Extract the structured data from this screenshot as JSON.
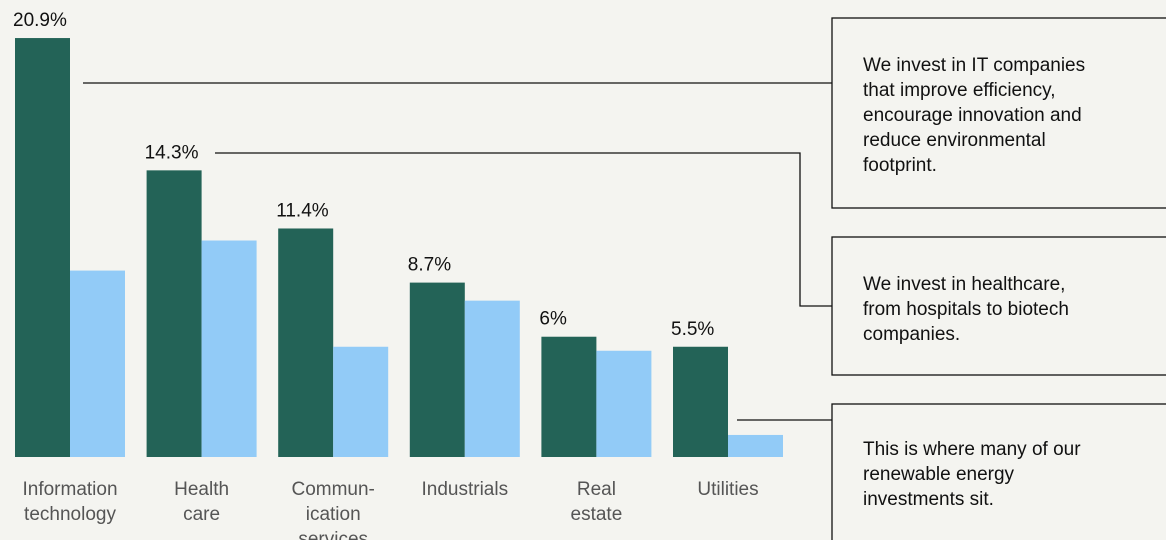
{
  "chart_data": {
    "type": "bar",
    "categories": [
      [
        "Information",
        "technology"
      ],
      [
        "Health",
        "care"
      ],
      [
        "Commun-",
        "ication",
        "services"
      ],
      [
        "Industrials"
      ],
      [
        "Real",
        "estate"
      ],
      [
        "Utilities"
      ]
    ],
    "series": [
      {
        "color": "#236357",
        "values": [
          20.9,
          14.3,
          11.4,
          8.7,
          6,
          5.5
        ],
        "value_labels": [
          "20.9%",
          "14.3%",
          "11.4%",
          "8.7%",
          "6%",
          "5.5%"
        ]
      },
      {
        "color": "#92cbf7",
        "values": [
          9.3,
          10.8,
          5.5,
          7.8,
          5.3,
          1.1
        ]
      }
    ],
    "ylim": [
      0,
      22
    ],
    "annotations": [
      [
        "We invest in IT companies",
        "that improve efficiency,",
        "encourage innovation and",
        "reduce environmental",
        "footprint."
      ],
      [
        "We invest in healthcare,",
        "from hospitals to biotech",
        "companies."
      ],
      [
        "This is where many of our",
        "renewable energy",
        "investments sit."
      ]
    ]
  }
}
